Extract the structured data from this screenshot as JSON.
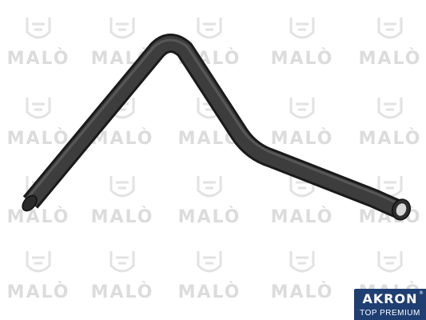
{
  "image": {
    "subject": "rubber coolant hose",
    "background_color": "#ffffff",
    "hose_color": "#2b2b2b"
  },
  "watermark": {
    "text": "MALÒ",
    "color": "#dcdcdc"
  },
  "badge": {
    "name": "AKRON",
    "trademark": "®",
    "subtitle": "TOP PREMIUM",
    "color": "#1f3f73"
  }
}
